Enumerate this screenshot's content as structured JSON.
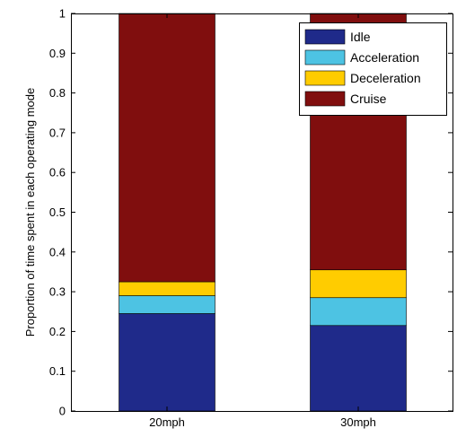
{
  "chart_data": {
    "type": "bar",
    "stacked": true,
    "categories": [
      "20mph",
      "30mph"
    ],
    "series": [
      {
        "name": "Idle",
        "color": "#1f2a8a",
        "values": [
          0.245,
          0.215
        ]
      },
      {
        "name": "Acceleration",
        "color": "#4dc3e3",
        "values": [
          0.045,
          0.07
        ]
      },
      {
        "name": "Deceleration",
        "color": "#ffcc00",
        "values": [
          0.035,
          0.07
        ]
      },
      {
        "name": "Cruise",
        "color": "#800e0e",
        "values": [
          0.675,
          0.645
        ]
      }
    ],
    "ylabel": "Proportion of time spent in each operating mode",
    "xlabel": "",
    "ylim": [
      0,
      1
    ],
    "yticks": [
      "0",
      "0.1",
      "0.2",
      "0.3",
      "0.4",
      "0.5",
      "0.6",
      "0.7",
      "0.8",
      "0.9",
      "1"
    ],
    "yticks_values": [
      0,
      0.1,
      0.2,
      0.3,
      0.4,
      0.5,
      0.6,
      0.7,
      0.8,
      0.9,
      1
    ],
    "legend": {
      "placement": "top-right",
      "entries": [
        "Idle",
        "Acceleration",
        "Deceleration",
        "Cruise"
      ]
    },
    "grid": false
  }
}
